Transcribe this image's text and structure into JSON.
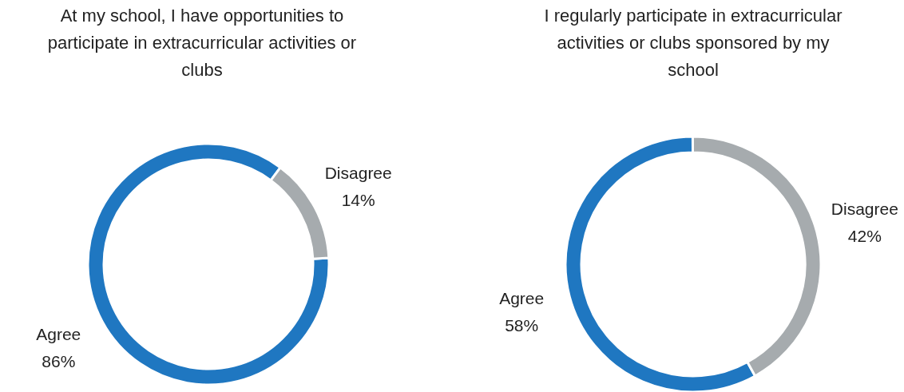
{
  "chart_data": [
    {
      "type": "donut",
      "title": "At my school, I have opportunities to participate in extracurricular activities or clubs",
      "categories": [
        "Agree",
        "Disagree"
      ],
      "values": [
        86,
        14
      ],
      "colors": [
        "#1f77c1",
        "#a6abae"
      ],
      "value_labels": [
        "86%",
        "14%"
      ]
    },
    {
      "type": "donut",
      "title": "I regularly participate in extracurricular activities or clubs sponsored by my school",
      "categories": [
        "Agree",
        "Disagree"
      ],
      "values": [
        58,
        42
      ],
      "colors": [
        "#1f77c1",
        "#a6abae"
      ],
      "value_labels": [
        "58%",
        "42%"
      ]
    }
  ]
}
